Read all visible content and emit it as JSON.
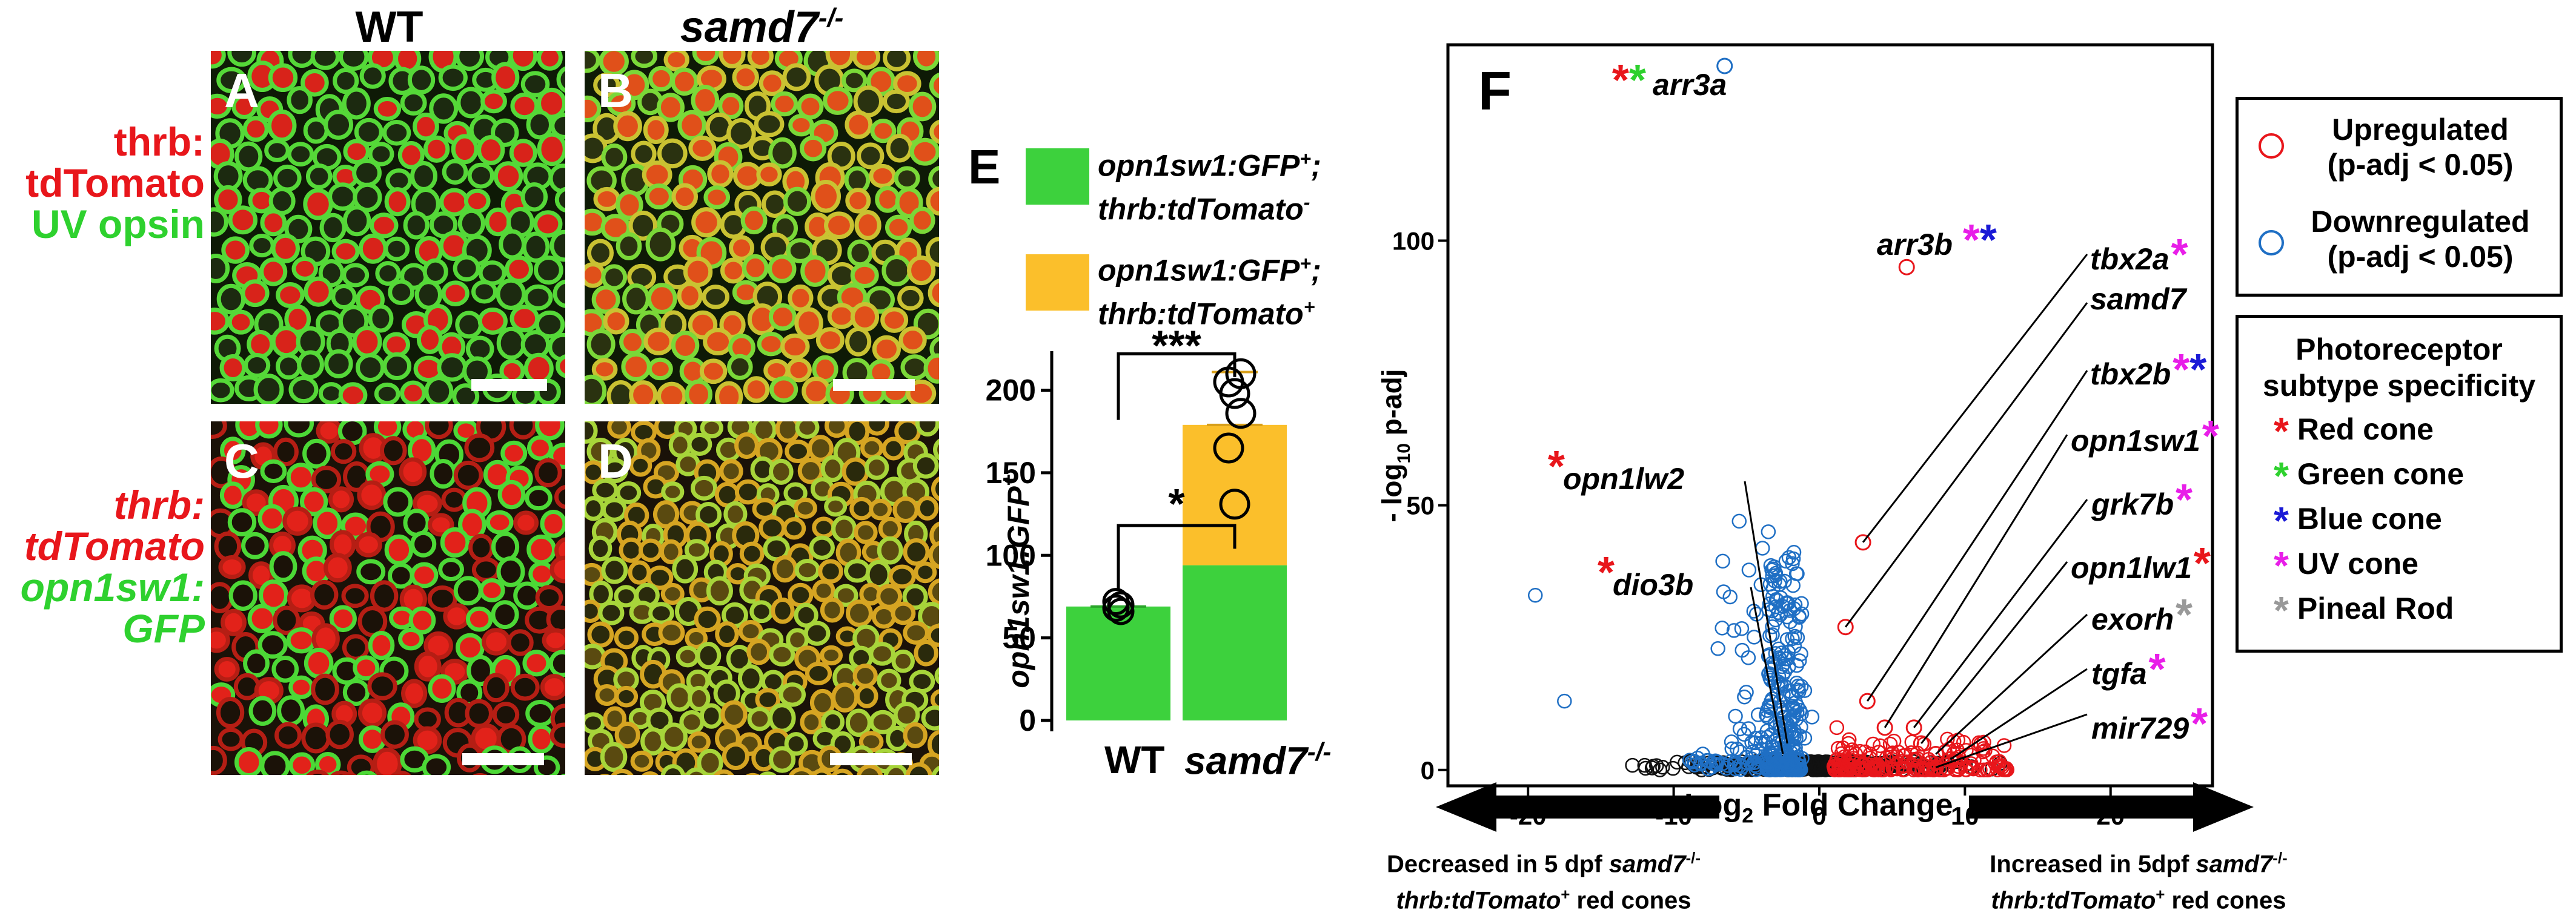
{
  "panels": {
    "col_wt": "WT",
    "col_samd7": "samd7",
    "col_samd7_sup": "-/-",
    "labels": [
      "A",
      "B",
      "C",
      "D",
      "E",
      "F"
    ],
    "row1_label": [
      "thrb:",
      "tdTomato",
      "UV opsin"
    ],
    "row2_label": [
      "thrb:",
      "tdTomato",
      "opn1sw1:",
      "GFP"
    ]
  },
  "bar_legend": {
    "green": {
      "l1": "opn1sw1:GFP",
      "sup1": "+",
      "semi": ";",
      "l2": "thrb:tdTomato",
      "sup2": "-",
      "color": "#3dd13d"
    },
    "orange": {
      "l1": "opn1sw1:GFP",
      "sup1": "+",
      "semi": ";",
      "l2": "thrb:tdTomato",
      "sup2": "+",
      "color": "#fbbf2b"
    }
  },
  "chart_data": [
    {
      "type": "bar",
      "stacked": true,
      "categories": [
        "WT",
        "samd7-/-"
      ],
      "series": [
        {
          "name": "opn1sw1:GFP+; thrb:tdTomato-",
          "values": [
            69,
            94
          ],
          "color": "#3dd13d"
        },
        {
          "name": "opn1sw1:GFP+; thrb:tdTomato+",
          "values": [
            0,
            85
          ],
          "color": "#fbbf2b"
        }
      ],
      "points": {
        "WT": [
          66,
          68,
          70,
          72
        ],
        "samd7-/-": [
          205,
          198,
          186,
          165,
          131,
          210
        ]
      },
      "ylabel": "opn1sw1:GFP",
      "ylabel_sup": "+",
      "yticks": [
        0,
        50,
        100,
        150,
        200
      ],
      "ylim": [
        0,
        220
      ],
      "significance": [
        {
          "label": "*",
          "between": [
            "WT",
            "samd7-/-"
          ]
        },
        {
          "label": "***",
          "between": [
            "WT",
            "samd7-/-"
          ]
        }
      ]
    },
    {
      "type": "scatter",
      "subtype": "volcano",
      "xlabel": "Log",
      "xlabel_sub": "2",
      "xlabel_rest": " Fold Change",
      "ylabel_pre": "- log",
      "ylabel_sub": "10",
      "ylabel_post": " p-adj",
      "xticks": [
        -20,
        -10,
        0,
        10,
        20
      ],
      "yticks": [
        0,
        50,
        100
      ],
      "xlim": [
        -25.5,
        27
      ],
      "ylim": [
        -3,
        137
      ],
      "labeled_points": [
        {
          "gene": "arr3a",
          "x": -6.5,
          "y": 133,
          "regulation": "down"
        },
        {
          "gene": "arr3b",
          "x": 6,
          "y": 95,
          "regulation": "up"
        },
        {
          "gene": "tbx2a",
          "x": 3,
          "y": 43,
          "regulation": "up"
        },
        {
          "gene": "samd7",
          "x": 1.8,
          "y": 27,
          "regulation": "up"
        },
        {
          "gene": "tbx2b",
          "x": 3.3,
          "y": 13,
          "regulation": "up"
        },
        {
          "gene": "opn1sw1",
          "x": 4.5,
          "y": 8,
          "regulation": "up"
        },
        {
          "gene": "grk7b",
          "x": 6.5,
          "y": 8,
          "regulation": "up"
        },
        {
          "gene": "opn1lw1",
          "x": 7,
          "y": 5,
          "regulation": "up"
        },
        {
          "gene": "exorh",
          "x": 8,
          "y": 3,
          "regulation": "up"
        },
        {
          "gene": "tgfa",
          "x": 9,
          "y": 2,
          "regulation": "up"
        },
        {
          "gene": "mir729",
          "x": 8,
          "y": 0.5,
          "regulation": "up"
        },
        {
          "gene": "opn1lw2",
          "x": -2.2,
          "y": 5,
          "regulation": "down"
        },
        {
          "gene": "dio3b",
          "x": -2.5,
          "y": 3,
          "regulation": "down"
        }
      ],
      "other_down_points": [
        [
          -19.5,
          33
        ],
        [
          -17.5,
          13
        ],
        [
          -5.5,
          47
        ],
        [
          -3.5,
          45
        ],
        [
          -4,
          35
        ],
        [
          -4.5,
          30
        ],
        [
          -2,
          28
        ],
        [
          -1.5,
          25
        ],
        [
          -3,
          22
        ],
        [
          -2.5,
          18
        ],
        [
          -1,
          15
        ],
        [
          -1.5,
          12
        ],
        [
          -0.5,
          10
        ],
        [
          -2,
          9
        ],
        [
          -3,
          8
        ],
        [
          -1,
          6
        ],
        [
          -4,
          5
        ],
        [
          -6,
          4
        ],
        [
          -8,
          3
        ]
      ],
      "other_up_points": [
        [
          2.5,
          3
        ],
        [
          3.5,
          3
        ],
        [
          5,
          2
        ],
        [
          6.5,
          2
        ],
        [
          7.5,
          2
        ],
        [
          4,
          1
        ],
        [
          2,
          5
        ],
        [
          1.2,
          8
        ]
      ],
      "legend": {
        "up": {
          "l1": "Upregulated",
          "l2": "(p-adj < 0.05)",
          "color": "#e8161b"
        },
        "down": {
          "l1": "Downregulated",
          "l2": "(p-adj < 0.05)",
          "color": "#1f6fc4"
        }
      }
    }
  ],
  "specificity_legend": {
    "title1": "Photoreceptor",
    "title2": "subtype specificity",
    "items": [
      {
        "label": "Red cone",
        "color": "#e8161b"
      },
      {
        "label": "Green cone",
        "color": "#2ed12e"
      },
      {
        "label": "Blue cone",
        "color": "#1a1ad6"
      },
      {
        "label": "UV cone",
        "color": "#e81ee8"
      },
      {
        "label": "Pineal Rod",
        "color": "#999999"
      }
    ]
  },
  "arrows": {
    "left_l1": "Decreased in 5 dpf ",
    "left_l1_i": "samd7",
    "left_l1_sup": "-/-",
    "left_l2_i": "thrb:tdTomato",
    "left_l2_sup": "+",
    "left_l2_rest": " red cones",
    "right_l1": "Increased in 5dpf ",
    "right_l1_i": "samd7",
    "right_l1_sup": "-/-",
    "right_l2_i": "thrb:tdTomato",
    "right_l2_sup": "+",
    "right_l2_rest": " red cones"
  },
  "colors": {
    "red": "#e8161b",
    "green": "#2ed12e",
    "blue": "#1a1ad6",
    "magenta": "#e81ee8",
    "grey": "#999999",
    "bar_green": "#3dd13d",
    "bar_orange": "#fbbf2b",
    "volcano_red": "#e8161b",
    "volcano_blue": "#1f6fc4"
  }
}
